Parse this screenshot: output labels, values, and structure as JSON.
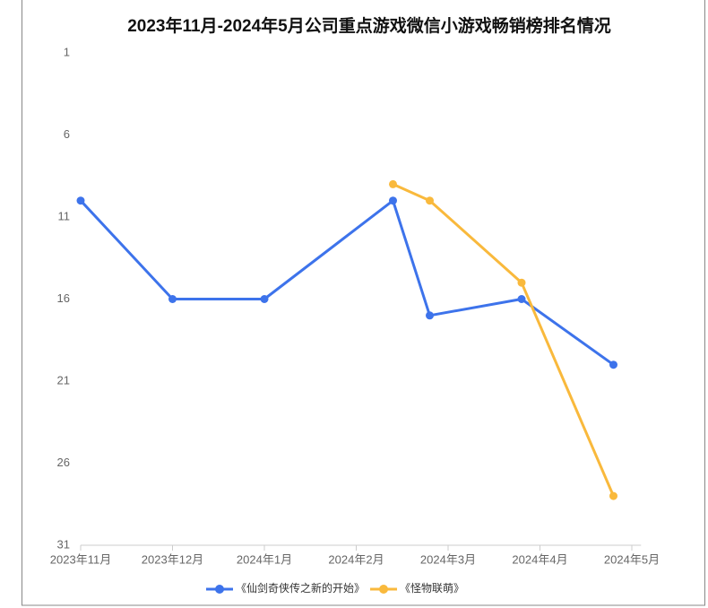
{
  "chart_data": {
    "type": "line",
    "title": "2023年11月-2024年5月公司重点游戏微信小游戏畅销榜排名情况",
    "xlim": [
      0,
      6.1
    ],
    "xticks": [
      {
        "value": 0,
        "label": "2023年11月"
      },
      {
        "value": 1,
        "label": "2023年12月"
      },
      {
        "value": 2,
        "label": "2024年1月"
      },
      {
        "value": 3,
        "label": "2024年2月"
      },
      {
        "value": 4,
        "label": "2024年3月"
      },
      {
        "value": 5,
        "label": "2024年4月"
      },
      {
        "value": 6,
        "label": "2024年5月"
      }
    ],
    "ylim": [
      1,
      31
    ],
    "y_inverted": true,
    "yticks": [
      1,
      6,
      11,
      16,
      21,
      26,
      31
    ],
    "grid": false,
    "legend": "bottom",
    "series": [
      {
        "name": "《仙剑奇侠传之新的开始》",
        "color": "#3d73eb",
        "x": [
          0,
          1,
          2,
          3.4,
          3.8,
          4.8,
          5.8
        ],
        "values": [
          10,
          16,
          16,
          10,
          17,
          16,
          20
        ]
      },
      {
        "name": "《怪物联萌》",
        "color": "#f9b93c",
        "x": [
          3.4,
          3.8,
          4.8,
          5.8
        ],
        "values": [
          9,
          10,
          15,
          28
        ]
      }
    ]
  }
}
